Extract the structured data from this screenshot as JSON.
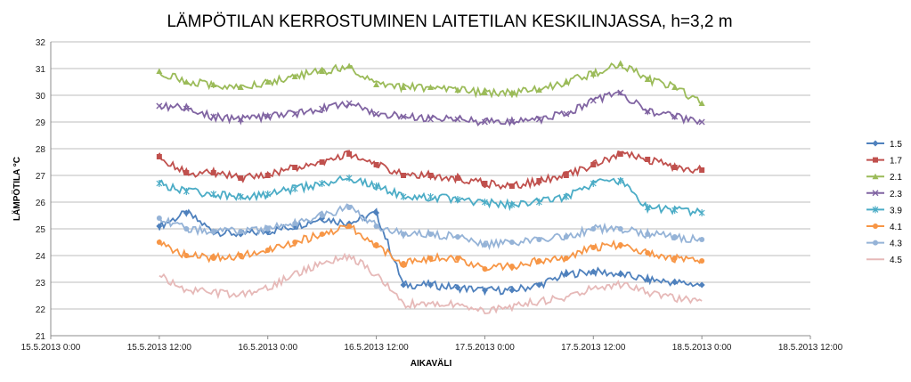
{
  "chart_data": {
    "type": "line",
    "title": "LÄMPÖTILAN KERROSTUMINEN LAITETILAN KESKILINJASSA, h=3,2 m",
    "xlabel": "AIKAVÄLI",
    "ylabel": "LÄMPÖTILA °C",
    "ylim": [
      21,
      32
    ],
    "yticks": [
      "21",
      "22",
      "23",
      "24",
      "25",
      "26",
      "27",
      "28",
      "29",
      "30",
      "31",
      "32"
    ],
    "xticks": [
      "15.5.2013 0:00",
      "15.5.2013 12:00",
      "16.5.2013 0:00",
      "16.5.2013 12:00",
      "17.5.2013 0:00",
      "17.5.2013 12:00",
      "18.5.2013 0:00",
      "18.5.2013 12:00"
    ],
    "xlim_hours": [
      0,
      84
    ],
    "grid": "horizontal",
    "legend": "right",
    "x_hours": [
      12,
      15,
      18,
      21,
      24,
      27,
      30,
      33,
      36,
      39,
      42,
      45,
      48,
      51,
      54,
      57,
      60,
      63,
      66,
      69,
      72
    ],
    "series": [
      {
        "name": "1.5",
        "color": "#4F81BD",
        "marker": "diamond",
        "values": [
          25.1,
          25.6,
          24.9,
          24.8,
          24.9,
          25.1,
          25.4,
          25.2,
          25.6,
          22.9,
          22.9,
          22.8,
          22.7,
          22.7,
          22.9,
          23.3,
          23.4,
          23.3,
          23.1,
          23.0,
          22.9
        ]
      },
      {
        "name": "1.7",
        "color": "#C0504D",
        "marker": "square",
        "values": [
          27.7,
          27.1,
          27.1,
          26.9,
          27.0,
          27.3,
          27.5,
          27.8,
          27.4,
          27.0,
          27.0,
          26.9,
          26.7,
          26.6,
          26.8,
          27.0,
          27.4,
          27.8,
          27.6,
          27.3,
          27.2
        ]
      },
      {
        "name": "2.1",
        "color": "#9BBB59",
        "marker": "triangle",
        "values": [
          30.9,
          30.5,
          30.4,
          30.3,
          30.5,
          30.7,
          30.9,
          31.1,
          30.4,
          30.3,
          30.3,
          30.2,
          30.1,
          30.1,
          30.2,
          30.5,
          30.8,
          31.2,
          30.6,
          30.3,
          29.7
        ]
      },
      {
        "name": "2.3",
        "color": "#8064A2",
        "marker": "x",
        "values": [
          29.6,
          29.5,
          29.2,
          29.1,
          29.2,
          29.3,
          29.5,
          29.7,
          29.3,
          29.2,
          29.1,
          29.1,
          29.0,
          29.0,
          29.1,
          29.3,
          29.8,
          30.1,
          29.4,
          29.2,
          29.0
        ]
      },
      {
        "name": "3.9",
        "color": "#4BACC6",
        "marker": "star",
        "values": [
          26.7,
          26.4,
          26.3,
          26.2,
          26.3,
          26.5,
          26.7,
          26.9,
          26.6,
          26.2,
          26.2,
          26.1,
          26.0,
          25.9,
          26.0,
          26.2,
          26.7,
          26.8,
          25.8,
          25.7,
          25.6
        ]
      },
      {
        "name": "4.1",
        "color": "#F79646",
        "marker": "circle",
        "values": [
          24.5,
          24.0,
          23.9,
          24.0,
          24.2,
          24.5,
          24.8,
          25.1,
          24.4,
          23.7,
          23.9,
          23.9,
          23.5,
          23.6,
          23.8,
          23.9,
          24.3,
          24.4,
          24.1,
          23.9,
          23.8
        ]
      },
      {
        "name": "4.3",
        "color": "#95B3D7",
        "marker": "circle",
        "values": [
          25.4,
          25.0,
          24.9,
          24.9,
          25.0,
          25.2,
          25.5,
          25.8,
          25.1,
          24.8,
          24.8,
          24.7,
          24.4,
          24.5,
          24.6,
          24.7,
          25.0,
          25.0,
          24.8,
          24.7,
          24.6
        ]
      },
      {
        "name": "4.5",
        "color": "#E6B9B8",
        "marker": "none",
        "values": [
          23.3,
          22.7,
          22.6,
          22.5,
          22.8,
          23.3,
          23.7,
          24.0,
          23.3,
          22.2,
          22.2,
          22.2,
          21.9,
          22.1,
          22.3,
          22.4,
          22.8,
          22.9,
          22.6,
          22.4,
          22.3
        ]
      }
    ]
  }
}
